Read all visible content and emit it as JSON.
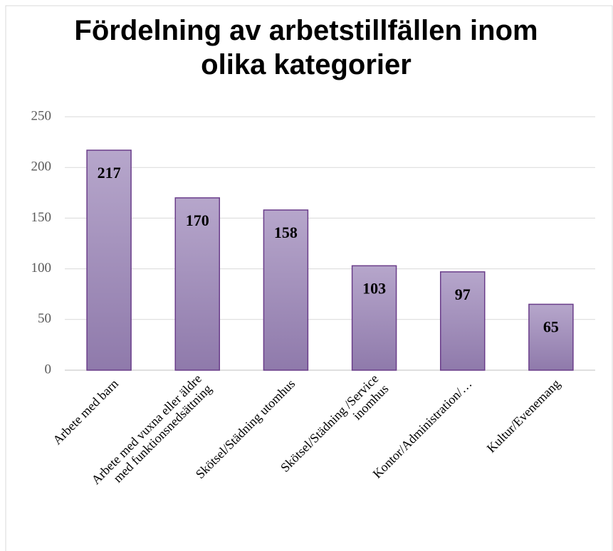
{
  "chart_data": {
    "type": "bar",
    "title": [
      "Fördelning av arbetstillfällen inom",
      "olika kategorier"
    ],
    "categories": [
      [
        "Arbete med barn"
      ],
      [
        "Arbete med vuxna eller äldre",
        "med funktionsnedsättning"
      ],
      [
        "Skötsel/Städning utomhus"
      ],
      [
        "Skötsel/Städning /Service",
        "inomhus"
      ],
      [
        "Kontor/Administration/…"
      ],
      [
        "Kultur/Evenemang"
      ]
    ],
    "values": [
      217,
      170,
      158,
      103,
      97,
      65
    ],
    "color": "#a895c0",
    "ylim": [
      0,
      250
    ],
    "yticks": [
      0,
      50,
      100,
      150,
      200,
      250
    ],
    "grid": true
  }
}
